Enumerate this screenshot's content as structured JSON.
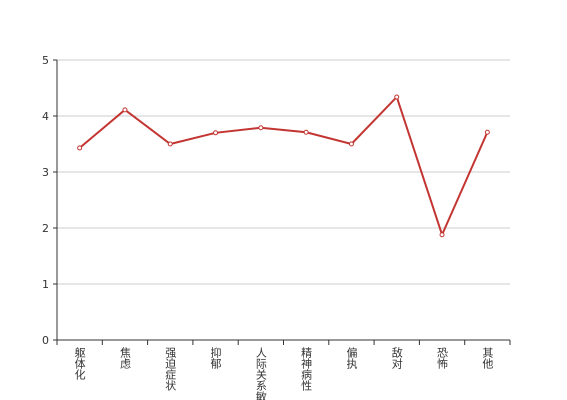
{
  "chart_data": {
    "type": "line",
    "categories": [
      "躯体化",
      "焦虑",
      "强迫症状",
      "抑郁",
      "人际关系敏感",
      "精神病性",
      "偏执",
      "敌对",
      "恐怖",
      "其他"
    ],
    "series": [
      {
        "color": "#c23531",
        "values": [
          3.43,
          4.11,
          3.5,
          3.7,
          3.79,
          3.71,
          3.5,
          4.34,
          1.88,
          3.71
        ]
      }
    ],
    "ylim": [
      0,
      5
    ],
    "yticks": [
      0,
      1,
      2,
      3,
      4,
      5
    ],
    "grid": true
  }
}
